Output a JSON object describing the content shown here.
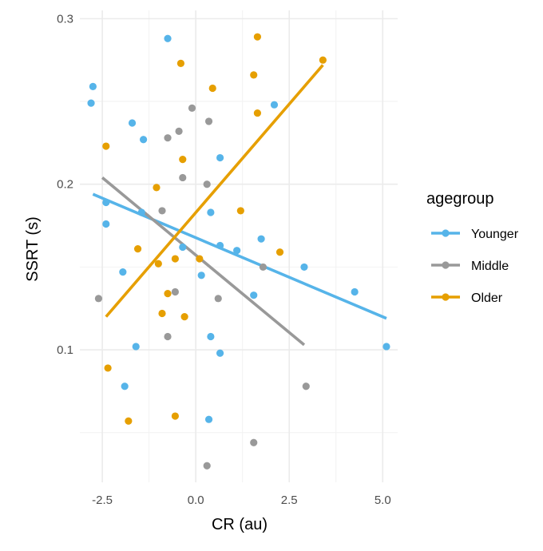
{
  "chart_data": {
    "type": "scatter",
    "xlabel": "CR (au)",
    "ylabel": "SSRT (s)",
    "xlim": [
      -3.1,
      5.4
    ],
    "ylim": [
      0.02,
      0.305
    ],
    "x_ticks": [
      -2.5,
      0.0,
      2.5,
      5.0
    ],
    "x_tick_labels": [
      "-2.5",
      "0.0",
      "2.5",
      "5.0"
    ],
    "y_ticks": [
      0.1,
      0.2,
      0.3
    ],
    "y_tick_labels": [
      "0.1",
      "0.2",
      "0.3"
    ],
    "grid": true,
    "legend": {
      "title": "agegroup",
      "position": "right"
    },
    "series": [
      {
        "name": "Younger",
        "color": "#56B4E9",
        "points": [
          [
            -2.75,
            0.259
          ],
          [
            -2.8,
            0.249
          ],
          [
            -0.75,
            0.288
          ],
          [
            -1.7,
            0.237
          ],
          [
            -1.4,
            0.227
          ],
          [
            -2.4,
            0.189
          ],
          [
            -2.4,
            0.176
          ],
          [
            -1.45,
            0.183
          ],
          [
            -1.95,
            0.147
          ],
          [
            -1.6,
            0.102
          ],
          [
            -1.9,
            0.078
          ],
          [
            -0.35,
            0.162
          ],
          [
            0.65,
            0.216
          ],
          [
            0.4,
            0.183
          ],
          [
            0.65,
            0.163
          ],
          [
            1.1,
            0.16
          ],
          [
            1.75,
            0.167
          ],
          [
            2.1,
            0.248
          ],
          [
            0.15,
            0.145
          ],
          [
            1.55,
            0.133
          ],
          [
            0.4,
            0.108
          ],
          [
            0.65,
            0.098
          ],
          [
            0.35,
            0.058
          ],
          [
            2.9,
            0.15
          ],
          [
            4.25,
            0.135
          ],
          [
            5.1,
            0.102
          ]
        ],
        "fit": [
          [
            -2.75,
            0.194
          ],
          [
            5.1,
            0.119
          ]
        ]
      },
      {
        "name": "Middle",
        "color": "#999999",
        "points": [
          [
            -0.1,
            0.246
          ],
          [
            0.35,
            0.238
          ],
          [
            -0.45,
            0.232
          ],
          [
            -0.75,
            0.228
          ],
          [
            -0.35,
            0.204
          ],
          [
            0.3,
            0.2
          ],
          [
            -0.9,
            0.184
          ],
          [
            1.8,
            0.15
          ],
          [
            -2.6,
            0.131
          ],
          [
            -0.55,
            0.135
          ],
          [
            0.6,
            0.131
          ],
          [
            -0.75,
            0.108
          ],
          [
            2.95,
            0.078
          ],
          [
            1.55,
            0.044
          ],
          [
            0.3,
            0.03
          ]
        ],
        "fit": [
          [
            -2.5,
            0.204
          ],
          [
            2.9,
            0.103
          ]
        ]
      },
      {
        "name": "Older",
        "color": "#E69F00",
        "points": [
          [
            -0.4,
            0.273
          ],
          [
            1.65,
            0.289
          ],
          [
            3.4,
            0.275
          ],
          [
            0.45,
            0.258
          ],
          [
            1.55,
            0.266
          ],
          [
            1.65,
            0.243
          ],
          [
            -2.4,
            0.223
          ],
          [
            -0.35,
            0.215
          ],
          [
            -1.05,
            0.198
          ],
          [
            1.2,
            0.184
          ],
          [
            -1.55,
            0.161
          ],
          [
            2.25,
            0.159
          ],
          [
            -1.0,
            0.152
          ],
          [
            -0.55,
            0.155
          ],
          [
            0.1,
            0.155
          ],
          [
            -0.75,
            0.134
          ],
          [
            -0.9,
            0.122
          ],
          [
            -0.3,
            0.12
          ],
          [
            -2.35,
            0.089
          ],
          [
            -1.8,
            0.057
          ],
          [
            -0.55,
            0.06
          ]
        ],
        "fit": [
          [
            -2.4,
            0.12
          ],
          [
            3.4,
            0.272
          ]
        ]
      }
    ]
  }
}
